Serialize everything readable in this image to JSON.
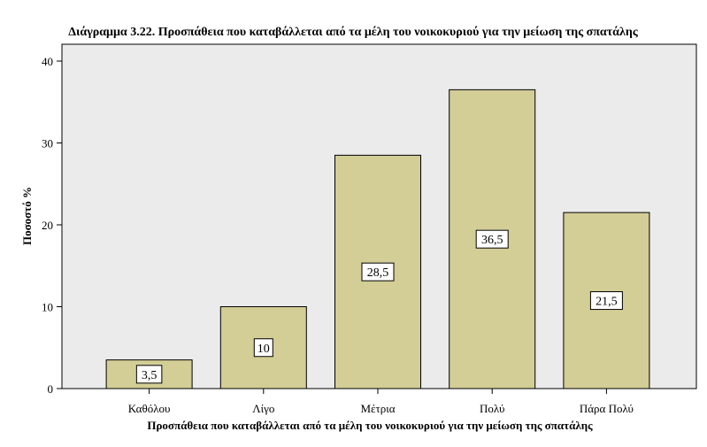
{
  "chart_data": {
    "type": "bar",
    "title": "Διάγραμμα 3.22. Προσπάθεια που καταβάλλεται από τα μέλη του νοικοκυριού για την μείωση της σπατάλης",
    "xlabel": "Προσπάθεια που καταβάλλεται από τα μέλη του νοικοκυριού για την μείωση της σπατάλης",
    "ylabel": "Ποσοστό %",
    "categories": [
      "Καθόλου",
      "Λίγο",
      "Μέτρια",
      "Πολύ",
      "Πάρα Πολύ"
    ],
    "values": [
      3.5,
      10,
      28.5,
      36.5,
      21.5
    ],
    "value_labels": [
      "3,5",
      "10",
      "28,5",
      "36,5",
      "21,5"
    ],
    "ylim": [
      0,
      40
    ],
    "yticks": [
      0,
      10,
      20,
      30,
      40
    ],
    "grid": false,
    "colors": {
      "bar_fill": "#d3cd96",
      "bar_stroke": "#000000",
      "plot_background": "#ebebeb",
      "page_background": "#ffffff"
    }
  }
}
